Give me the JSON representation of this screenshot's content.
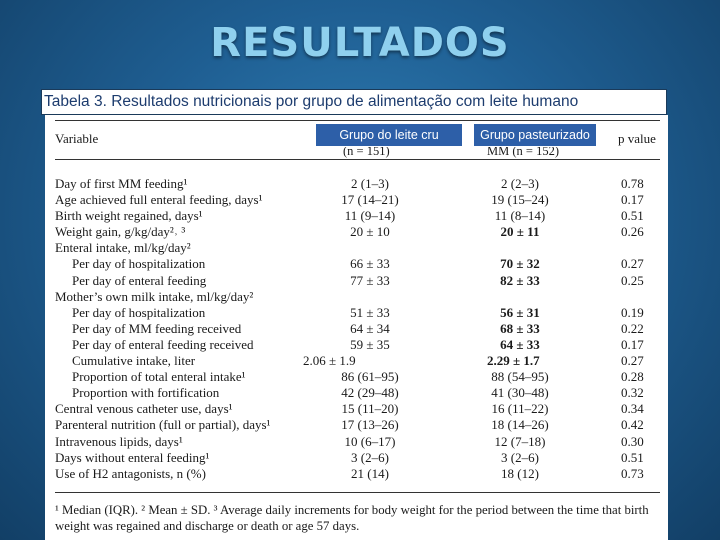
{
  "slide": {
    "title": "RESULTADOS"
  },
  "caption": "Tabela 3. Resultados nutricionais por grupo de alimentação com leite humano",
  "table": {
    "header": {
      "variable": "Variable",
      "group_a_label": "Grupo do leite cru",
      "group_a_n": "(n = 151)",
      "group_b_label": "Grupo pasteurizado",
      "group_b_n": "MM (n = 152)",
      "p": "p value"
    },
    "rows": [
      {
        "variable": "Day of first MM feeding¹",
        "a": "2 (1–3)",
        "b": "2 (2–3)",
        "p": "0.78"
      },
      {
        "variable": "Age achieved full enteral feeding, days¹",
        "a": "17 (14–21)",
        "b": "19 (15–24)",
        "p": "0.17"
      },
      {
        "variable": "Birth weight regained, days¹",
        "a": "11 (9–14)",
        "b": "11 (8–14)",
        "p": "0.51"
      },
      {
        "variable": "Weight gain, g/kg/day²˒ ³",
        "a": "20 ± 10",
        "b": "20 ± 11",
        "p": "0.26",
        "bold": true
      },
      {
        "variable": "Enteral intake, ml/kg/day²",
        "a": "",
        "b": "",
        "p": ""
      },
      {
        "variable": "Per day of hospitalization",
        "a": "66 ± 33",
        "b": "70 ± 32",
        "p": "0.27",
        "indent": true,
        "bold": true
      },
      {
        "variable": "Per day of enteral feeding",
        "a": "77 ± 33",
        "b": "82 ± 33",
        "p": "0.25",
        "indent": true,
        "bold": true
      },
      {
        "variable": "Mother’s own milk intake, ml/kg/day²",
        "a": "",
        "b": "",
        "p": ""
      },
      {
        "variable": "Per day of hospitalization",
        "a": "51 ± 33",
        "b": "56 ± 31",
        "p": "0.19",
        "indent": true,
        "bold": true
      },
      {
        "variable": "Per day of MM feeding received",
        "a": "64 ± 34",
        "b": "68 ± 33",
        "p": "0.22",
        "indent": true,
        "bold": true
      },
      {
        "variable": "Per day of enteral feeding received",
        "a": "59 ± 35",
        "b": "64 ± 33",
        "p": "0.17",
        "indent": true,
        "bold": true
      },
      {
        "variable": "Cumulative intake, liter",
        "a": "2.06 ± 1.9",
        "b": "2.29 ± 1.7",
        "p": "0.27",
        "indent": true,
        "bold": true,
        "left": true
      },
      {
        "variable": "Proportion of total enteral intake¹",
        "a": "86 (61–95)",
        "b": "88 (54–95)",
        "p": "0.28",
        "indent": true
      },
      {
        "variable": "Proportion with fortification",
        "a": "42 (29–48)",
        "b": "41 (30–48)",
        "p": "0.32",
        "indent": true
      },
      {
        "variable": "Central venous catheter use, days¹",
        "a": "15 (11–20)",
        "b": "16 (11–22)",
        "p": "0.34"
      },
      {
        "variable": "Parenteral nutrition (full or partial), days¹",
        "a": "17 (13–26)",
        "b": "18 (14–26)",
        "p": "0.42"
      },
      {
        "variable": "Intravenous lipids, days¹",
        "a": "10 (6–17)",
        "b": "12 (7–18)",
        "p": "0.30"
      },
      {
        "variable": "Days without enteral feeding¹",
        "a": "3 (2–6)",
        "b": "3 (2–6)",
        "p": "0.51"
      },
      {
        "variable": "Use of H2 antagonists, n (%)",
        "a": "21 (14)",
        "b": "18 (12)",
        "p": "0.73"
      }
    ],
    "footnote": "¹ Median (IQR). ² Mean ± SD. ³ Average daily increments for body weight for the period between the time that birth weight was regained and discharge or death or age 57 days."
  }
}
